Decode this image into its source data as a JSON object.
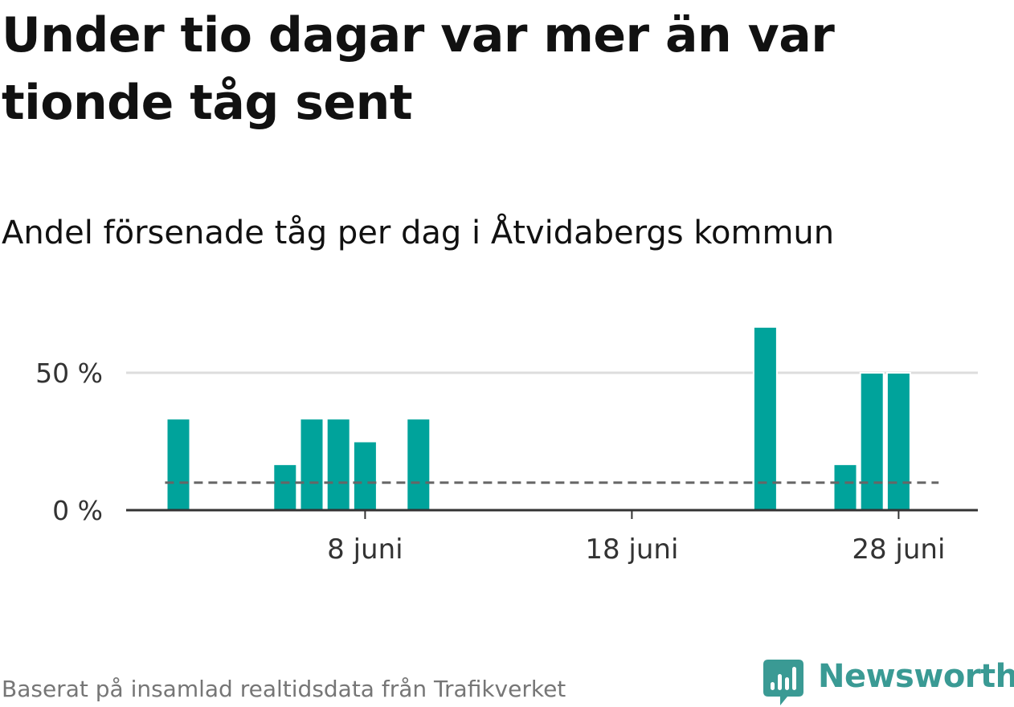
{
  "header": {
    "title": "Under tio dagar var mer än var tionde tåg sent",
    "subtitle": "Andel försenade tåg per dag i Åtvidabergs kommun"
  },
  "footer": {
    "source": "Baserat på insamlad realtidsdata från Trafikverket",
    "brand": "Newsworthy",
    "brand_icon": "newsworthy-logo-icon"
  },
  "colors": {
    "bar": "#00a39b",
    "gridline": "#dddddd",
    "axis": "#333333",
    "reference_line": "#666666",
    "brand": "#3a9a94"
  },
  "chart_data": {
    "type": "bar",
    "title": "Andel försenade tåg per dag i Åtvidabergs kommun",
    "y_unit": "%",
    "ylim": [
      0,
      75
    ],
    "y_ticks": [
      {
        "value": 0,
        "label": "0 %"
      },
      {
        "value": 50,
        "label": "50 %"
      }
    ],
    "x_ticks": [
      {
        "day": 8,
        "label": "8 juni"
      },
      {
        "day": 18,
        "label": "18 juni"
      },
      {
        "day": 28,
        "label": "28 juni"
      }
    ],
    "grid": "horizontal",
    "reference_line": {
      "value": 10,
      "style": "dashed",
      "from_day": 0.5,
      "to_day": 29.5
    },
    "series": [
      {
        "values": [
          {
            "day": 1,
            "value": 33.3
          },
          {
            "day": 5,
            "value": 16.7
          },
          {
            "day": 6,
            "value": 33.3
          },
          {
            "day": 7,
            "value": 33.3
          },
          {
            "day": 8,
            "value": 25.0
          },
          {
            "day": 10,
            "value": 33.3
          },
          {
            "day": 23,
            "value": 66.7
          },
          {
            "day": 26,
            "value": 16.7
          },
          {
            "day": 27,
            "value": 50.0
          },
          {
            "day": 28,
            "value": 50.0
          }
        ]
      }
    ]
  }
}
